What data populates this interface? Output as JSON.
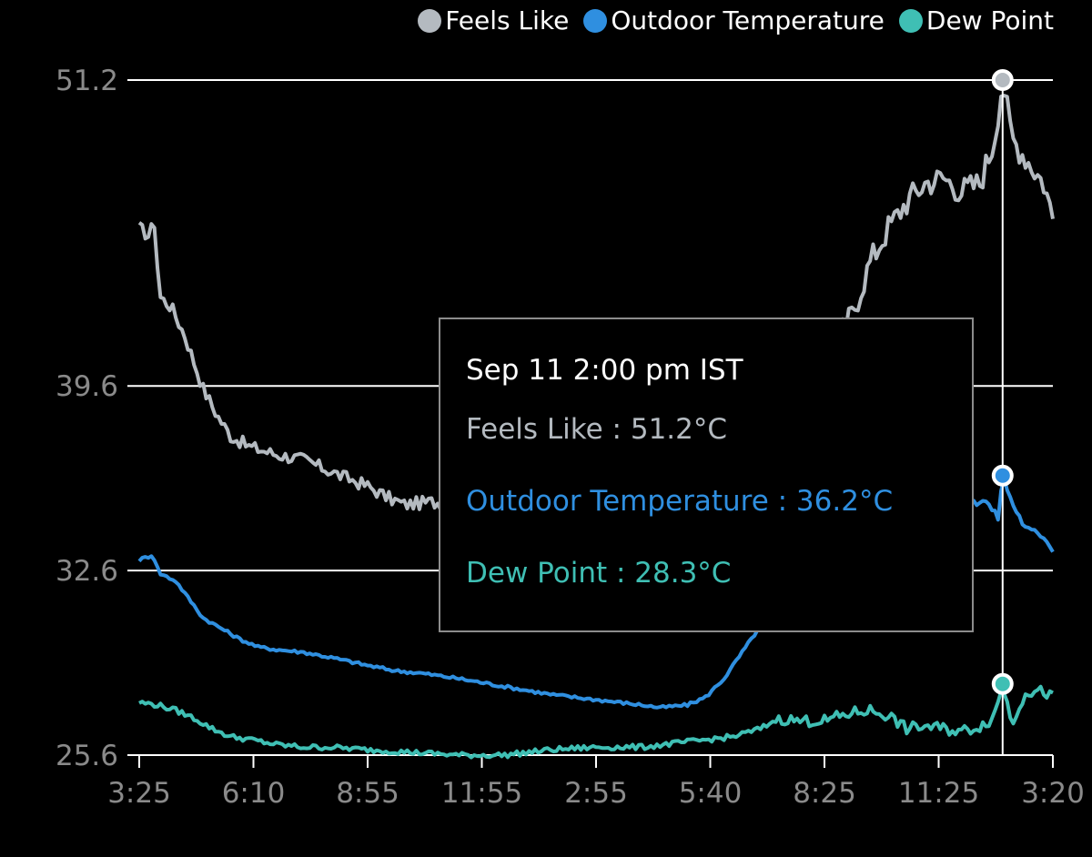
{
  "chart_data": {
    "type": "line",
    "x_tick_labels": [
      "3:25",
      "6:10",
      "8:55",
      "11:55",
      "2:55",
      "5:40",
      "8:25",
      "11:25",
      "3:20"
    ],
    "y_tick_labels": [
      "51.2",
      "39.6",
      "32.6",
      "25.6"
    ],
    "y_ticks": [
      51.2,
      39.6,
      32.6,
      25.6
    ],
    "ylim": [
      25.6,
      51.2
    ],
    "grid": true,
    "legend_position": "top-right",
    "series": [
      {
        "name": "Feels Like",
        "color": "#b4bac0",
        "points": [
          [
            0,
            45.6
          ],
          [
            0.01,
            45.3
          ],
          [
            0.017,
            45.8
          ],
          [
            0.022,
            43.0
          ],
          [
            0.035,
            42.6
          ],
          [
            0.05,
            41.5
          ],
          [
            0.06,
            40.5
          ],
          [
            0.07,
            39.5
          ],
          [
            0.085,
            38.5
          ],
          [
            0.1,
            37.7
          ],
          [
            0.12,
            37.3
          ],
          [
            0.15,
            37.0
          ],
          [
            0.18,
            36.8
          ],
          [
            0.2,
            36.5
          ],
          [
            0.22,
            36.2
          ],
          [
            0.25,
            35.8
          ],
          [
            0.27,
            35.4
          ],
          [
            0.29,
            35.1
          ],
          [
            0.32,
            35.2
          ],
          [
            0.36,
            35.0
          ],
          [
            0.4,
            34.7
          ],
          [
            0.44,
            34.3
          ],
          [
            0.48,
            34.1
          ],
          [
            0.52,
            34.2
          ],
          [
            0.56,
            34.5
          ],
          [
            0.6,
            34.8
          ],
          [
            0.64,
            35.5
          ],
          [
            0.68,
            36.7
          ],
          [
            0.72,
            38.8
          ],
          [
            0.75,
            40.5
          ],
          [
            0.78,
            42.3
          ],
          [
            0.8,
            44.3
          ],
          [
            0.82,
            45.6
          ],
          [
            0.84,
            46.6
          ],
          [
            0.86,
            47.3
          ],
          [
            0.88,
            47.5
          ],
          [
            0.9,
            47.0
          ],
          [
            0.92,
            47.3
          ],
          [
            0.935,
            48.8
          ],
          [
            0.945,
            51.2
          ],
          [
            0.955,
            49.0
          ],
          [
            0.97,
            48.3
          ],
          [
            0.99,
            47.3
          ],
          [
            1,
            46.0
          ]
        ]
      },
      {
        "name": "Outdoor Temperature",
        "color": "#2f8fe0",
        "points": [
          [
            0,
            33.0
          ],
          [
            0.015,
            33.2
          ],
          [
            0.022,
            32.5
          ],
          [
            0.04,
            32.2
          ],
          [
            0.055,
            31.5
          ],
          [
            0.07,
            30.8
          ],
          [
            0.09,
            30.4
          ],
          [
            0.11,
            30.0
          ],
          [
            0.13,
            29.7
          ],
          [
            0.15,
            29.6
          ],
          [
            0.18,
            29.5
          ],
          [
            0.21,
            29.3
          ],
          [
            0.25,
            29.0
          ],
          [
            0.28,
            28.8
          ],
          [
            0.31,
            28.7
          ],
          [
            0.35,
            28.5
          ],
          [
            0.4,
            28.2
          ],
          [
            0.45,
            27.9
          ],
          [
            0.5,
            27.7
          ],
          [
            0.55,
            27.5
          ],
          [
            0.57,
            27.4
          ],
          [
            0.6,
            27.5
          ],
          [
            0.62,
            27.8
          ],
          [
            0.64,
            28.5
          ],
          [
            0.66,
            29.5
          ],
          [
            0.68,
            30.5
          ],
          [
            0.7,
            31.5
          ],
          [
            0.72,
            33.0
          ],
          [
            0.74,
            34.2
          ],
          [
            0.8,
            34.8
          ],
          [
            0.86,
            35.3
          ],
          [
            0.9,
            35.0
          ],
          [
            0.925,
            35.3
          ],
          [
            0.94,
            34.6
          ],
          [
            0.945,
            36.2
          ],
          [
            0.955,
            35.2
          ],
          [
            0.97,
            34.2
          ],
          [
            0.99,
            33.9
          ],
          [
            1,
            33.4
          ]
        ]
      },
      {
        "name": "Dew Point",
        "color": "#3fbfb4",
        "points": [
          [
            0,
            27.6
          ],
          [
            0.02,
            27.5
          ],
          [
            0.04,
            27.3
          ],
          [
            0.06,
            27.0
          ],
          [
            0.08,
            26.6
          ],
          [
            0.1,
            26.3
          ],
          [
            0.12,
            26.2
          ],
          [
            0.15,
            26.0
          ],
          [
            0.18,
            25.9
          ],
          [
            0.21,
            25.9
          ],
          [
            0.25,
            25.8
          ],
          [
            0.3,
            25.7
          ],
          [
            0.35,
            25.6
          ],
          [
            0.4,
            25.6
          ],
          [
            0.45,
            25.8
          ],
          [
            0.5,
            25.9
          ],
          [
            0.55,
            25.9
          ],
          [
            0.6,
            26.1
          ],
          [
            0.65,
            26.3
          ],
          [
            0.68,
            26.6
          ],
          [
            0.7,
            27.0
          ],
          [
            0.72,
            26.9
          ],
          [
            0.75,
            26.9
          ],
          [
            0.78,
            27.2
          ],
          [
            0.8,
            27.3
          ],
          [
            0.82,
            27.1
          ],
          [
            0.84,
            26.6
          ],
          [
            0.86,
            26.7
          ],
          [
            0.88,
            26.6
          ],
          [
            0.9,
            26.5
          ],
          [
            0.92,
            26.7
          ],
          [
            0.935,
            27.0
          ],
          [
            0.945,
            28.3
          ],
          [
            0.955,
            26.8
          ],
          [
            0.97,
            28.0
          ],
          [
            0.99,
            28.0
          ],
          [
            1,
            27.8
          ]
        ]
      }
    ],
    "hover_index_fraction": 0.945
  },
  "legend": [
    {
      "label": "Feels Like",
      "color": "#b4bac0"
    },
    {
      "label": "Outdoor Temperature",
      "color": "#2f8fe0"
    },
    {
      "label": "Dew Point",
      "color": "#3fbfb4"
    }
  ],
  "tooltip": {
    "title": "Sep 11 2:00 pm IST",
    "feels_like": "Feels Like : 51.2°C",
    "outdoor": "Outdoor Temperature : 36.2°C",
    "dew_point": "Dew Point : 28.3°C",
    "feels_like_color": "#b4bac0",
    "outdoor_color": "#2f8fe0",
    "dew_point_color": "#3fbfb4"
  }
}
